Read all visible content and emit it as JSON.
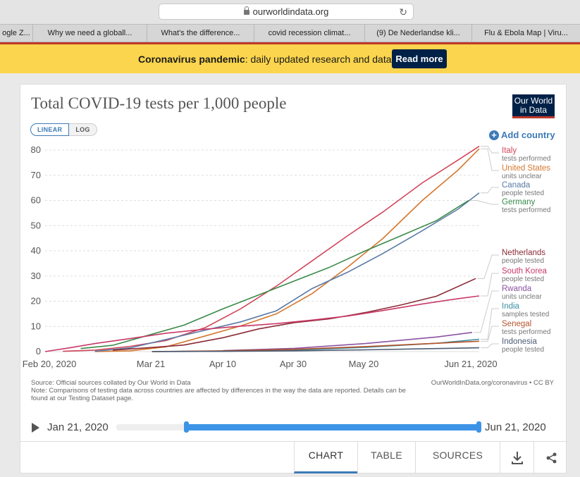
{
  "browser": {
    "url": "ourworldindata.org"
  },
  "bookmarks": [
    "ogle Z...",
    "Why we need a globall...",
    "What's the difference...",
    "covid recession climat...",
    "(9) De Nederlandse kli...",
    "Flu & Ebola Map | Viru..."
  ],
  "banner": {
    "bold": "Coronavirus pandemic",
    "text": ": daily updated research and data.",
    "button": "Read more"
  },
  "card": {
    "logo_line1": "Our World",
    "logo_line2": "in Data",
    "scale_linear": "LINEAR",
    "scale_log": "LOG",
    "add_country": "Add country",
    "source": "Source: Official sources collated by Our World in Data",
    "note": "Note: Comparisons of testing data across countries are affected by differences in the way the data are reported. Details can be found at our Testing Dataset page.",
    "license": "OurWorldInData.org/coronavirus • CC BY",
    "timeline_start": "Jan 21, 2020",
    "timeline_end": "Jun 21, 2020",
    "tabs": {
      "chart": "CHART",
      "table": "TABLE",
      "sources": "SOURCES"
    }
  },
  "colors": {
    "accent": "#3d7ab7",
    "banner": "#fbd54d",
    "navy": "#002147"
  },
  "chart_data": {
    "type": "line",
    "title": "Total COVID-19 tests per 1,000 people",
    "xlabel": "",
    "ylabel": "",
    "ylim": [
      0,
      80
    ],
    "yticks": [
      0,
      10,
      20,
      30,
      40,
      50,
      60,
      70,
      80
    ],
    "xticks": [
      "Feb 20, 2020",
      "Mar 21",
      "Apr 10",
      "Apr 30",
      "May 20",
      "Jun 21, 2020"
    ],
    "x_start": "2020-02-20",
    "x_end": "2020-06-21",
    "grid": "horizontal",
    "legend": "right",
    "series": [
      {
        "name": "Italy",
        "sub": "tests performed",
        "color": "#d1465a",
        "points": [
          [
            "2020-02-25",
            0.1
          ],
          [
            "2020-03-05",
            0.6
          ],
          [
            "2020-03-15",
            2.1
          ],
          [
            "2020-03-25",
            4.4
          ],
          [
            "2020-04-05",
            9.5
          ],
          [
            "2020-04-15",
            17
          ],
          [
            "2020-04-25",
            26
          ],
          [
            "2020-05-05",
            36
          ],
          [
            "2020-05-15",
            46
          ],
          [
            "2020-05-25",
            55.5
          ],
          [
            "2020-06-05",
            67
          ],
          [
            "2020-06-15",
            76
          ],
          [
            "2020-06-21",
            81.5
          ]
        ]
      },
      {
        "name": "United States",
        "sub": "units unclear",
        "color": "#d4772e",
        "points": [
          [
            "2020-03-05",
            0
          ],
          [
            "2020-03-15",
            0.3
          ],
          [
            "2020-03-25",
            1.9
          ],
          [
            "2020-04-05",
            6.2
          ],
          [
            "2020-04-15",
            10.2
          ],
          [
            "2020-04-25",
            15
          ],
          [
            "2020-05-05",
            23
          ],
          [
            "2020-05-15",
            33.5
          ],
          [
            "2020-05-25",
            45
          ],
          [
            "2020-06-05",
            60
          ],
          [
            "2020-06-15",
            72
          ],
          [
            "2020-06-21",
            80.5
          ]
        ]
      },
      {
        "name": "Canada",
        "sub": "people tested",
        "color": "#5a7aa6",
        "points": [
          [
            "2020-03-05",
            0.1
          ],
          [
            "2020-03-15",
            1.5
          ],
          [
            "2020-03-25",
            4.8
          ],
          [
            "2020-04-05",
            8.5
          ],
          [
            "2020-04-15",
            11.8
          ],
          [
            "2020-04-25",
            16.2
          ],
          [
            "2020-05-05",
            25
          ],
          [
            "2020-05-15",
            31.5
          ],
          [
            "2020-05-25",
            39
          ],
          [
            "2020-06-05",
            48
          ],
          [
            "2020-06-15",
            56.5
          ],
          [
            "2020-06-21",
            63
          ]
        ]
      },
      {
        "name": "Germany",
        "sub": "tests performed",
        "color": "#3a8a49",
        "points": [
          [
            "2020-03-01",
            1.2
          ],
          [
            "2020-03-10",
            2.5
          ],
          [
            "2020-03-20",
            6.5
          ],
          [
            "2020-03-30",
            10.5
          ],
          [
            "2020-04-10",
            17
          ],
          [
            "2020-04-20",
            22.5
          ],
          [
            "2020-04-30",
            28
          ],
          [
            "2020-05-10",
            33.5
          ],
          [
            "2020-05-20",
            40
          ],
          [
            "2020-05-30",
            46
          ],
          [
            "2020-06-09",
            52
          ],
          [
            "2020-06-18",
            60
          ]
        ]
      },
      {
        "name": "Netherlands",
        "sub": "people tested",
        "color": "#8a2b35",
        "points": [
          [
            "2020-03-10",
            0.6
          ],
          [
            "2020-03-20",
            1.5
          ],
          [
            "2020-03-30",
            2.6
          ],
          [
            "2020-04-10",
            5.5
          ],
          [
            "2020-04-20",
            9
          ],
          [
            "2020-04-30",
            11.5
          ],
          [
            "2020-05-10",
            13
          ],
          [
            "2020-05-20",
            15.5
          ],
          [
            "2020-05-30",
            18.5
          ],
          [
            "2020-06-09",
            22
          ],
          [
            "2020-06-20",
            29
          ]
        ]
      },
      {
        "name": "South Korea",
        "sub": "people tested",
        "color": "#c93867",
        "points": [
          [
            "2020-02-20",
            0
          ],
          [
            "2020-02-27",
            1.5
          ],
          [
            "2020-03-05",
            3.2
          ],
          [
            "2020-03-15",
            5.2
          ],
          [
            "2020-03-25",
            7.3
          ],
          [
            "2020-04-05",
            8.9
          ],
          [
            "2020-04-15",
            10.1
          ],
          [
            "2020-04-25",
            11.1
          ],
          [
            "2020-05-05",
            12.5
          ],
          [
            "2020-05-15",
            14.1
          ],
          [
            "2020-05-25",
            16.3
          ],
          [
            "2020-06-05",
            18.9
          ],
          [
            "2020-06-15",
            21
          ],
          [
            "2020-06-21",
            22.1
          ]
        ]
      },
      {
        "name": "Rwanda",
        "sub": "units unclear",
        "color": "#8a53a1",
        "points": [
          [
            "2020-04-10",
            0.4
          ],
          [
            "2020-04-30",
            1.3
          ],
          [
            "2020-05-20",
            3.2
          ],
          [
            "2020-06-09",
            5.8
          ],
          [
            "2020-06-19",
            7.6
          ]
        ]
      },
      {
        "name": "India",
        "sub": "samples tested",
        "color": "#3b8fa3",
        "points": [
          [
            "2020-03-21",
            0
          ],
          [
            "2020-04-10",
            0.1
          ],
          [
            "2020-04-30",
            0.6
          ],
          [
            "2020-05-20",
            1.7
          ],
          [
            "2020-06-09",
            3.3
          ],
          [
            "2020-06-21",
            4.9
          ]
        ]
      },
      {
        "name": "Senegal",
        "sub": "tests performed",
        "color": "#b5542c",
        "points": [
          [
            "2020-03-21",
            0
          ],
          [
            "2020-04-10",
            0.3
          ],
          [
            "2020-04-30",
            0.9
          ],
          [
            "2020-05-20",
            2
          ],
          [
            "2020-06-09",
            3.3
          ],
          [
            "2020-06-21",
            4.1
          ]
        ]
      },
      {
        "name": "Indonesia",
        "sub": "people tested",
        "color": "#4d5b73",
        "points": [
          [
            "2020-03-21",
            0
          ],
          [
            "2020-04-10",
            0.1
          ],
          [
            "2020-04-30",
            0.3
          ],
          [
            "2020-05-20",
            0.7
          ],
          [
            "2020-06-09",
            1.2
          ],
          [
            "2020-06-21",
            1.5
          ]
        ]
      }
    ]
  }
}
